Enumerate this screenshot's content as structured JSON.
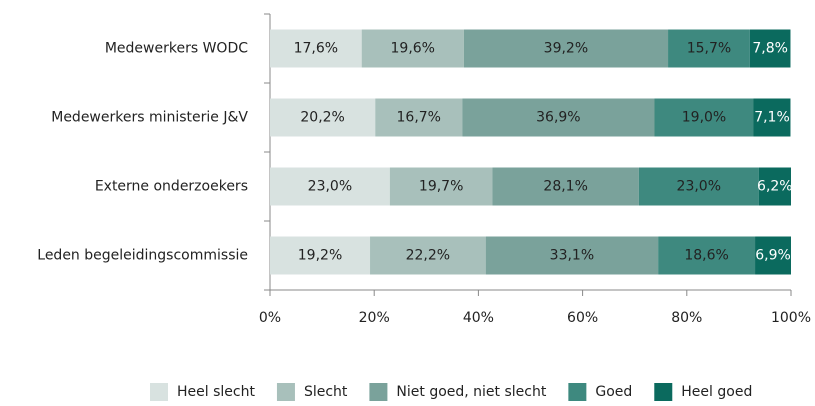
{
  "chart_data": {
    "type": "stacked_bar_horizontal",
    "categories": [
      "Medewerkers WODC",
      "Medewerkers ministerie J&V",
      "Externe onderzoekers",
      "Leden begeleidingscommissie"
    ],
    "series": [
      {
        "name": "Heel slecht",
        "color": "#d8e2e0",
        "values": [
          17.6,
          20.2,
          23.0,
          19.2
        ],
        "value_labels": [
          "17,6%",
          "20,2%",
          "23,0%",
          "19,2%"
        ]
      },
      {
        "name": "Slecht",
        "color": "#a8c0bb",
        "values": [
          19.6,
          16.7,
          19.7,
          22.2
        ],
        "value_labels": [
          "19,6%",
          "16,7%",
          "19,7%",
          "22,2%"
        ]
      },
      {
        "name": "Niet goed, niet slecht",
        "color": "#7aa29b",
        "values": [
          39.2,
          36.9,
          28.1,
          33.1
        ],
        "value_labels": [
          "39,2%",
          "36,9%",
          "28,1%",
          "33,1%"
        ]
      },
      {
        "name": "Goed",
        "color": "#3e897f",
        "values": [
          15.7,
          19.0,
          23.0,
          18.6
        ],
        "value_labels": [
          "15,7%",
          "19,0%",
          "23,0%",
          "18,6%"
        ]
      },
      {
        "name": "Heel goed",
        "color": "#0b6a5e",
        "values": [
          7.8,
          7.1,
          6.2,
          6.9
        ],
        "value_labels": [
          "7,8%",
          "7,1%",
          "6,2%",
          "6,9%"
        ]
      }
    ],
    "xlim": [
      0,
      100
    ],
    "xticks": [
      {
        "value": 0,
        "label": "0%"
      },
      {
        "value": 20,
        "label": "20%"
      },
      {
        "value": 40,
        "label": "40%"
      },
      {
        "value": 60,
        "label": "60%"
      },
      {
        "value": 80,
        "label": "80%"
      },
      {
        "value": 100,
        "label": "100%"
      }
    ],
    "legend": "bottom"
  }
}
